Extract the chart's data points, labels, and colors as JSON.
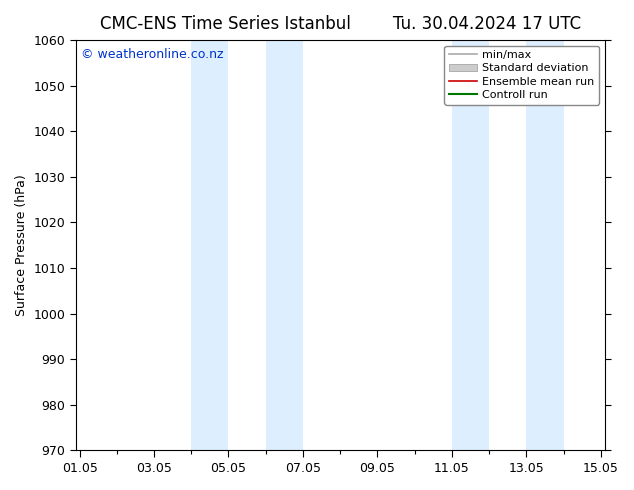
{
  "title_left": "CMC-ENS Time Series Istanbul",
  "title_right": "Tu. 30.04.2024 17 UTC",
  "ylabel": "Surface Pressure (hPa)",
  "ylim": [
    970,
    1060
  ],
  "yticks": [
    970,
    980,
    990,
    1000,
    1010,
    1020,
    1030,
    1040,
    1050,
    1060
  ],
  "xtick_labels": [
    "01.05",
    "03.05",
    "05.05",
    "07.05",
    "09.05",
    "11.05",
    "13.05",
    "15.05"
  ],
  "xtick_positions": [
    0,
    2,
    4,
    6,
    8,
    10,
    12,
    14
  ],
  "xlim": [
    -0.1,
    14.1
  ],
  "shaded_bands": [
    {
      "xmin": 3.0,
      "xmax": 4.0
    },
    {
      "xmin": 5.0,
      "xmax": 6.0
    },
    {
      "xmin": 10.0,
      "xmax": 11.0
    },
    {
      "xmin": 12.0,
      "xmax": 13.0
    }
  ],
  "band_color": "#ddeeff",
  "watermark": "© weatheronline.co.nz",
  "legend_items": [
    {
      "label": "min/max",
      "color": "#aaaaaa",
      "lw": 1.2,
      "style": "line"
    },
    {
      "label": "Standard deviation",
      "color": "#cccccc",
      "lw": 8,
      "style": "band"
    },
    {
      "label": "Ensemble mean run",
      "color": "#cc0000",
      "lw": 1.2,
      "style": "line"
    },
    {
      "label": "Controll run",
      "color": "#007700",
      "lw": 1.5,
      "style": "line"
    }
  ],
  "background_color": "#ffffff",
  "title_fontsize": 12,
  "tick_fontsize": 9,
  "ylabel_fontsize": 9,
  "watermark_fontsize": 9,
  "legend_fontsize": 8,
  "title_gap": "        "
}
